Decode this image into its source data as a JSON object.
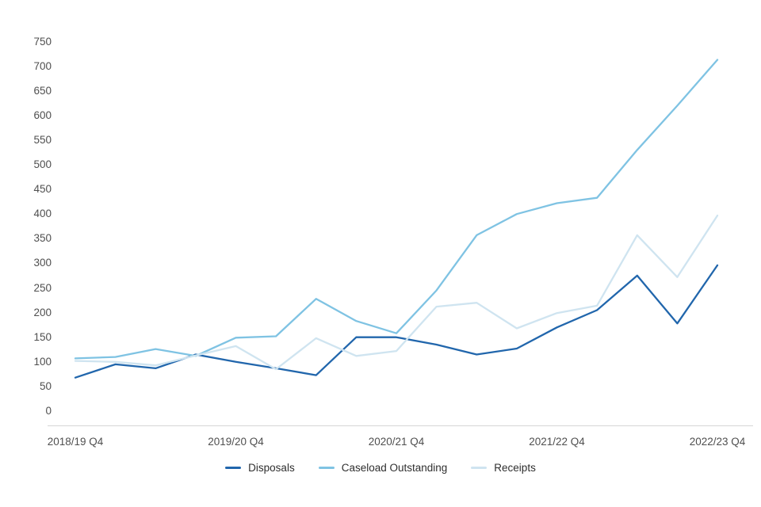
{
  "chart_data": {
    "type": "line",
    "title": "",
    "xlabel": "",
    "ylabel": "",
    "x_count": 17,
    "x_tick_positions": [
      0,
      4,
      8,
      12,
      16
    ],
    "x_tick_labels": [
      "2018/19 Q4",
      "2019/20 Q4",
      "2020/21 Q4",
      "2021/22 Q4",
      "2022/23 Q4"
    ],
    "y_ticks": [
      0,
      50,
      100,
      150,
      200,
      250,
      300,
      350,
      400,
      450,
      500,
      550,
      600,
      650,
      700,
      750
    ],
    "ylim": [
      0,
      750
    ],
    "grid": false,
    "legend_position": "bottom",
    "axis_line_color": "#d6d6d6",
    "tick_label_color": "#4f4f4f",
    "series": [
      {
        "name": "Disposals",
        "color": "#2166ac",
        "values": [
          68,
          95,
          87,
          115,
          100,
          87,
          73,
          150,
          150,
          135,
          115,
          127,
          170,
          205,
          275,
          178,
          296
        ]
      },
      {
        "name": "Caseload Outstanding",
        "color": "#7fc3e3",
        "values": [
          107,
          110,
          126,
          112,
          149,
          152,
          228,
          183,
          158,
          245,
          357,
          400,
          422,
          433,
          530,
          620,
          713
        ]
      },
      {
        "name": "Receipts",
        "color": "#cfe4f0",
        "values": [
          102,
          100,
          93,
          113,
          132,
          85,
          148,
          112,
          122,
          212,
          220,
          168,
          199,
          214,
          357,
          272,
          397
        ]
      }
    ]
  }
}
